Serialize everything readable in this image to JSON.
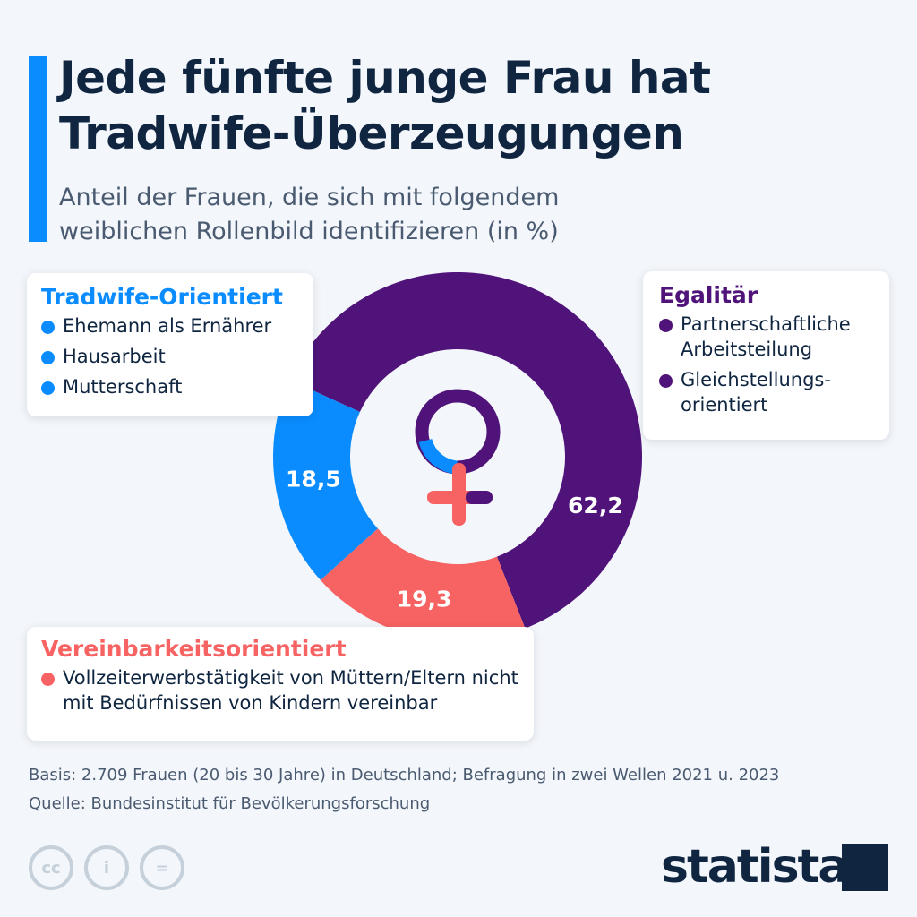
{
  "title": "Jede fünfte junge Frau hat Tradwife-Überzeugungen",
  "title_lines": [
    "Jede fünfte junge Frau hat",
    "Tradwife-Überzeugungen"
  ],
  "subtitle_lines": [
    "Anteil der Frauen, die sich mit folgendem",
    "weiblichen Rollenbild identifizieren (in %)"
  ],
  "chart_data": {
    "type": "pie",
    "variant": "donut",
    "unit": "%",
    "categories": [
      "Egalitär",
      "Vereinbarkeitsorientiert",
      "Tradwife-Orientiert"
    ],
    "values": [
      62.2,
      19.3,
      18.5
    ],
    "labels": [
      "62,2",
      "19,3",
      "18,5"
    ],
    "colors": [
      "#4f137a",
      "#f76262",
      "#0a8cff"
    ]
  },
  "legend": {
    "tradwife": {
      "title": "Tradwife-Orientiert",
      "color": "#0a8cff",
      "items": [
        "Ehemann als Ernährer",
        "Hausarbeit",
        "Mutterschaft"
      ]
    },
    "egalitaer": {
      "title": "Egalitär",
      "color": "#4f137a",
      "items": [
        "Partnerschaftliche Arbeitsteilung",
        "Gleichstellungs-orientiert"
      ]
    },
    "vereinbarkeit": {
      "title": "Vereinbarkeitsorientiert",
      "color": "#f76262",
      "items": [
        "Vollzeiterwerbstätigkeit von Müttern/Eltern nicht mit Bedürfnissen von Kindern vereinbar"
      ]
    }
  },
  "center_icon": "female-symbol-icon",
  "footer": {
    "basis": "Basis: 2.709 Frauen (20 bis 30 Jahre) in Deutschland; Befragung in zwei Wellen 2021 u. 2023",
    "source": "Quelle: Bundesinstitut für Bevölkerungsforschung"
  },
  "license_icons": [
    "cc-icon",
    "by-icon",
    "nd-icon"
  ],
  "license_glyphs": [
    "cc",
    "i",
    "="
  ],
  "brand": "statista"
}
